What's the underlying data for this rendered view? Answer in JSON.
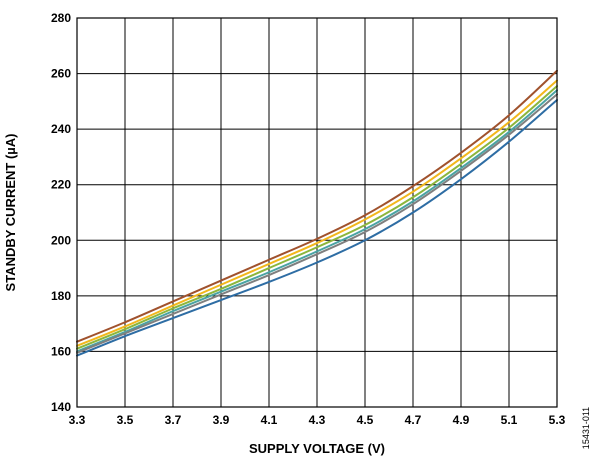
{
  "figure_id": "15431-011",
  "chart_data": {
    "type": "line",
    "title": "",
    "xlabel": "SUPPLY VOLTAGE (V)",
    "ylabel": "STANDBY CURRENT (µA)",
    "xlim": [
      3.3,
      5.3
    ],
    "ylim": [
      140,
      280
    ],
    "x_ticks": [
      "3.3",
      "3.5",
      "3.7",
      "3.9",
      "4.1",
      "4.3",
      "4.5",
      "4.7",
      "4.9",
      "5.1",
      "5.3"
    ],
    "y_ticks": [
      "140",
      "160",
      "180",
      "200",
      "220",
      "240",
      "260",
      "280"
    ],
    "grid": true,
    "legend": "none",
    "x": [
      3.3,
      3.5,
      3.7,
      3.9,
      4.1,
      4.3,
      4.5,
      4.7,
      4.9,
      5.1,
      5.3
    ],
    "series": [
      {
        "color": "#a0522d",
        "values": [
          163.5,
          170.5,
          178,
          185.5,
          193,
          200.5,
          209,
          219.5,
          231.5,
          245,
          261
        ]
      },
      {
        "color": "#f2b71c",
        "values": [
          162,
          169,
          176.5,
          184,
          191.5,
          199,
          207.5,
          217.5,
          229.5,
          242.5,
          257.5
        ]
      },
      {
        "color": "#8cb63c",
        "values": [
          161,
          168,
          175.5,
          182.5,
          190,
          197.5,
          205.5,
          215.5,
          227.5,
          240.5,
          255.5
        ]
      },
      {
        "color": "#4aa3a3",
        "values": [
          160,
          167,
          174.5,
          181.5,
          188.5,
          196,
          204,
          214,
          226,
          239,
          254
        ]
      },
      {
        "color": "#7f7f7f",
        "values": [
          159.5,
          166.5,
          173.5,
          180.5,
          187.5,
          195,
          203,
          213,
          225,
          238,
          252.5
        ]
      },
      {
        "color": "#2e6da4",
        "values": [
          158.5,
          165.5,
          172,
          178.5,
          185,
          192,
          200,
          210,
          222,
          235.5,
          250.5
        ]
      }
    ]
  }
}
